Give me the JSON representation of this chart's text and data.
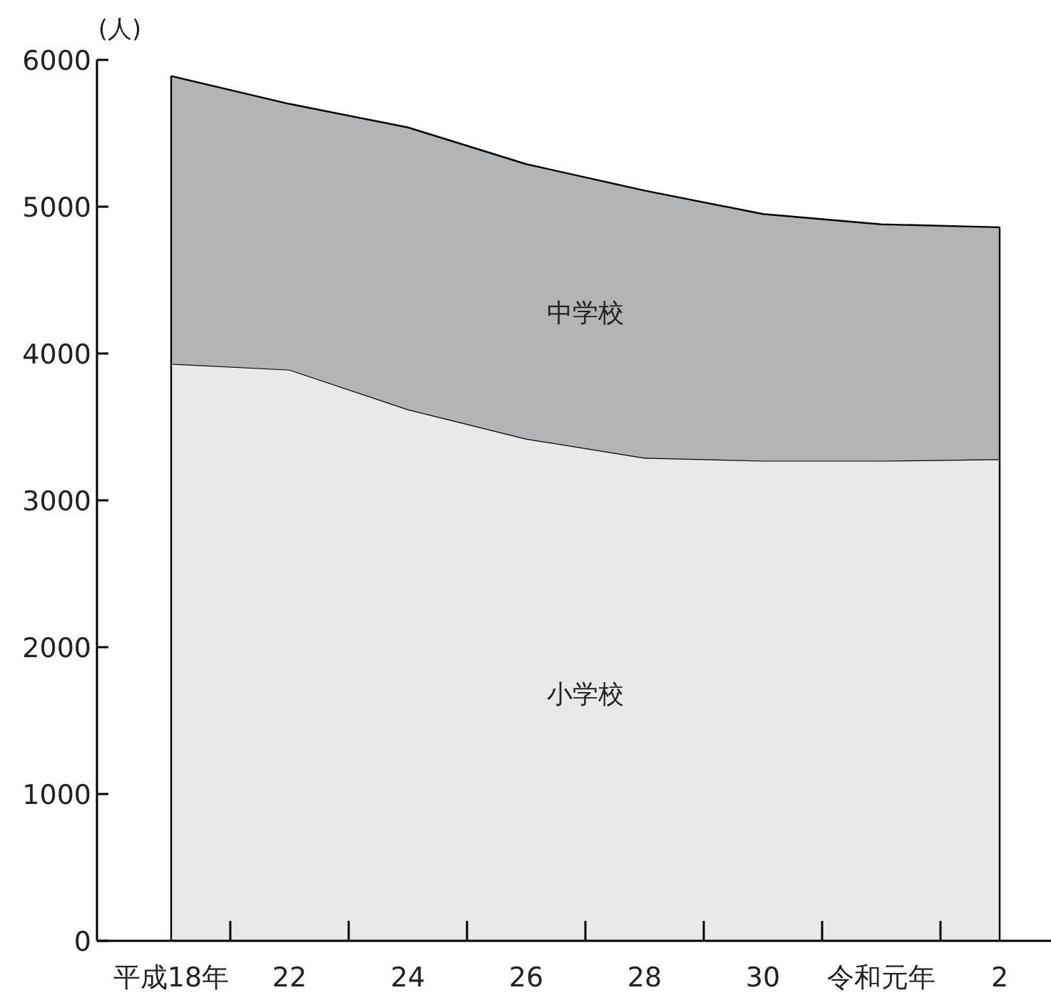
{
  "chart_data": {
    "type": "area",
    "stacked": true,
    "ylabel": "(人)",
    "categories": [
      "平成18年",
      "22",
      "24",
      "26",
      "28",
      "30",
      "令和元年",
      "2"
    ],
    "ylim": [
      0,
      6000
    ],
    "yticks": [
      0,
      1000,
      2000,
      3000,
      4000,
      5000,
      6000
    ],
    "grid": false,
    "series": [
      {
        "name": "小学校",
        "color": "#e8e9e9",
        "values": [
          3930,
          3890,
          3620,
          3420,
          3290,
          3270,
          3270,
          3280
        ]
      },
      {
        "name": "中学校",
        "color": "#b3b4b6",
        "values": [
          1960,
          1810,
          1920,
          1870,
          1820,
          1680,
          1610,
          1580
        ]
      }
    ]
  }
}
